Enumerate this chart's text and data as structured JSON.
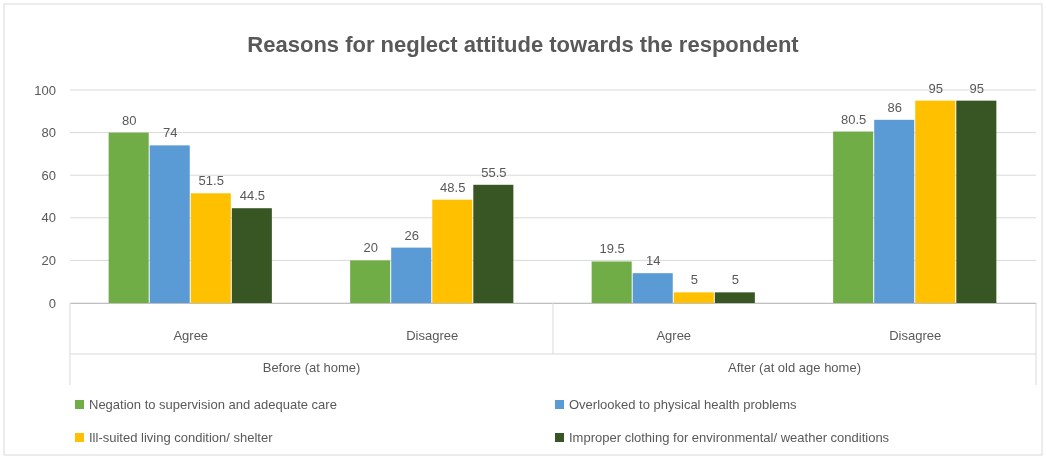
{
  "chart_data": {
    "type": "bar",
    "title": "Reasons for neglect attitude towards the respondent",
    "categories": [
      "Agree",
      "Disagree",
      "Agree",
      "Disagree"
    ],
    "annotations": [
      "Before (at home)",
      "After (at old age home)"
    ],
    "series": [
      {
        "name": "Negation to supervision and adequate care",
        "color": "#70ad47",
        "values": [
          80,
          20,
          19.5,
          80.5
        ]
      },
      {
        "name": "Overlooked to physical health problems",
        "color": "#5b9bd5",
        "values": [
          74,
          26,
          14,
          86
        ]
      },
      {
        "name": "Ill-suited living condition/ shelter",
        "color": "#ffc000",
        "values": [
          51.5,
          48.5,
          5,
          95
        ]
      },
      {
        "name": "Improper clothing for environmental/ weather conditions",
        "color": "#375623",
        "values": [
          44.5,
          55.5,
          5,
          95
        ]
      }
    ],
    "ylim": [
      0,
      100
    ],
    "yticks": [
      0,
      20,
      40,
      60,
      80,
      100
    ],
    "grid": "y",
    "legend": "bottom",
    "data_labels": true
  }
}
